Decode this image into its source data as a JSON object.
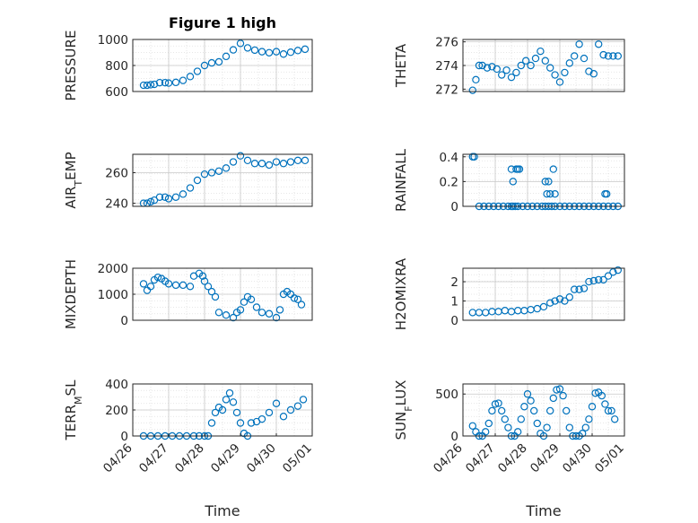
{
  "colors": {
    "marker": "#0072bd",
    "axis": "#262626",
    "grid": "#dfdfdf"
  },
  "chart_data": [
    {
      "type": "scatter",
      "title": "Figure 1 high",
      "ylabel": "PRESSURE",
      "ylabel_parts": [
        [
          "PRESSURE",
          ""
        ]
      ],
      "xlim": [
        0,
        5
      ],
      "ylim": [
        600,
        1000
      ],
      "yticks": [
        600,
        800,
        1000
      ],
      "xticks": [],
      "x": [
        0.3,
        0.4,
        0.5,
        0.6,
        0.75,
        0.9,
        1.0,
        1.2,
        1.4,
        1.6,
        1.8,
        2.0,
        2.2,
        2.4,
        2.6,
        2.8,
        3.0,
        3.2,
        3.4,
        3.6,
        3.8,
        4.0,
        4.2,
        4.4,
        4.6,
        4.8
      ],
      "values": [
        648,
        648,
        652,
        655,
        668,
        668,
        665,
        670,
        685,
        715,
        755,
        800,
        820,
        828,
        870,
        920,
        970,
        935,
        918,
        906,
        898,
        906,
        888,
        902,
        915,
        925
      ]
    },
    {
      "type": "scatter",
      "title": "",
      "ylabel": "THETA",
      "ylabel_parts": [
        [
          "THETA",
          ""
        ]
      ],
      "xlim": [
        0,
        5
      ],
      "ylim": [
        271.8,
        276.2
      ],
      "yticks": [
        272,
        274,
        276
      ],
      "xticks": [],
      "x": [
        0.3,
        0.4,
        0.5,
        0.6,
        0.75,
        0.9,
        1.05,
        1.2,
        1.35,
        1.5,
        1.65,
        1.8,
        1.95,
        2.1,
        2.25,
        2.4,
        2.55,
        2.7,
        2.85,
        3.0,
        3.15,
        3.3,
        3.45,
        3.6,
        3.75,
        3.9,
        4.05,
        4.2,
        4.35,
        4.5,
        4.65,
        4.8
      ],
      "values": [
        271.9,
        272.8,
        274.0,
        274.0,
        273.8,
        273.9,
        273.7,
        273.2,
        273.6,
        273.0,
        273.4,
        274.0,
        274.4,
        274.0,
        274.6,
        275.2,
        274.4,
        273.8,
        273.2,
        272.6,
        273.4,
        274.2,
        274.8,
        275.8,
        274.6,
        273.5,
        273.3,
        275.8,
        274.9,
        274.8,
        274.8,
        274.8
      ]
    },
    {
      "type": "scatter",
      "title": "",
      "ylabel": "AIR_TEMP",
      "ylabel_parts": [
        [
          "AIR",
          ""
        ],
        [
          "T",
          "sub"
        ],
        [
          "EMP",
          ""
        ]
      ],
      "xlim": [
        0,
        5
      ],
      "ylim": [
        238,
        272
      ],
      "yticks": [
        240,
        260
      ],
      "xticks": [],
      "x": [
        0.3,
        0.4,
        0.5,
        0.6,
        0.75,
        0.9,
        1.0,
        1.2,
        1.4,
        1.6,
        1.8,
        2.0,
        2.2,
        2.4,
        2.6,
        2.8,
        3.0,
        3.2,
        3.4,
        3.6,
        3.8,
        4.0,
        4.2,
        4.4,
        4.6,
        4.8
      ],
      "values": [
        240,
        240,
        241,
        242,
        244,
        244,
        243,
        244,
        246,
        250,
        255,
        259,
        260,
        261,
        263,
        267,
        271,
        268,
        266,
        266,
        265,
        267,
        266,
        267,
        268,
        268
      ]
    },
    {
      "type": "scatter",
      "title": "",
      "ylabel": "RAINFALL",
      "ylabel_parts": [
        [
          "RAINFALL",
          ""
        ]
      ],
      "xlim": [
        0,
        5
      ],
      "ylim": [
        0,
        0.42
      ],
      "yticks": [
        0,
        0.2,
        0.4
      ],
      "xticks": [],
      "x": [
        0.3,
        0.35,
        0.5,
        0.65,
        0.8,
        0.95,
        1.1,
        1.25,
        1.4,
        1.5,
        1.55,
        1.62,
        1.7,
        1.85,
        2.0,
        2.15,
        2.3,
        2.45,
        2.55,
        2.65,
        2.75,
        2.85,
        3.0,
        3.15,
        3.3,
        3.45,
        3.6,
        3.75,
        3.9,
        4.05,
        4.2,
        4.35,
        4.5,
        4.65,
        4.8,
        1.5,
        1.55,
        1.65,
        1.7,
        1.75,
        2.55,
        2.6,
        2.65,
        2.7,
        2.8,
        2.85,
        4.4,
        4.45
      ],
      "values": [
        0.4,
        0.4,
        0,
        0,
        0,
        0,
        0,
        0,
        0,
        0,
        0,
        0,
        0,
        0,
        0,
        0,
        0,
        0,
        0,
        0,
        0,
        0,
        0,
        0,
        0,
        0,
        0,
        0,
        0,
        0,
        0,
        0,
        0,
        0,
        0,
        0.3,
        0.2,
        0.3,
        0.3,
        0.3,
        0.2,
        0.1,
        0.2,
        0.1,
        0.3,
        0.1,
        0.1,
        0.1
      ]
    },
    {
      "type": "scatter",
      "title": "",
      "ylabel": "MIXDEPTH",
      "ylabel_parts": [
        [
          "MIXDEPTH",
          ""
        ]
      ],
      "xlim": [
        0,
        5
      ],
      "ylim": [
        0,
        2000
      ],
      "yticks": [
        0,
        1000,
        2000
      ],
      "xticks": [],
      "x": [
        0.3,
        0.4,
        0.5,
        0.6,
        0.7,
        0.8,
        0.9,
        1.0,
        1.2,
        1.4,
        1.6,
        1.7,
        1.85,
        1.95,
        2.0,
        2.1,
        2.2,
        2.3,
        2.4,
        2.6,
        2.8,
        2.9,
        3.0,
        3.1,
        3.2,
        3.3,
        3.45,
        3.6,
        3.8,
        4.0,
        4.1,
        4.2,
        4.3,
        4.4,
        4.5,
        4.6,
        4.7
      ],
      "values": [
        1400,
        1150,
        1300,
        1550,
        1650,
        1600,
        1500,
        1400,
        1350,
        1350,
        1300,
        1700,
        1800,
        1700,
        1500,
        1300,
        1100,
        900,
        300,
        200,
        100,
        300,
        400,
        700,
        900,
        800,
        500,
        300,
        250,
        100,
        400,
        1000,
        1100,
        1000,
        850,
        800,
        600
      ]
    },
    {
      "type": "scatter",
      "title": "",
      "ylabel": "H2OMIXRA",
      "ylabel_parts": [
        [
          "H2OMIXRA",
          ""
        ]
      ],
      "xlim": [
        0,
        5
      ],
      "ylim": [
        0,
        2.7
      ],
      "yticks": [
        0,
        1,
        2
      ],
      "xticks": [],
      "x": [
        0.3,
        0.5,
        0.7,
        0.9,
        1.1,
        1.3,
        1.5,
        1.7,
        1.9,
        2.1,
        2.3,
        2.5,
        2.7,
        2.85,
        3.0,
        3.15,
        3.3,
        3.45,
        3.6,
        3.75,
        3.9,
        4.05,
        4.2,
        4.35,
        4.5,
        4.65,
        4.8
      ],
      "values": [
        0.4,
        0.4,
        0.4,
        0.45,
        0.45,
        0.5,
        0.45,
        0.5,
        0.5,
        0.55,
        0.6,
        0.7,
        0.9,
        1.0,
        1.1,
        1.0,
        1.2,
        1.6,
        1.6,
        1.65,
        2.0,
        2.05,
        2.1,
        2.1,
        2.3,
        2.5,
        2.6
      ]
    },
    {
      "type": "scatter",
      "title": "",
      "ylabel": "TERR_MSL",
      "ylabel_parts": [
        [
          "TERR",
          ""
        ],
        [
          "M",
          "sub"
        ],
        [
          "SL",
          ""
        ]
      ],
      "xlim": [
        0,
        5
      ],
      "ylim": [
        0,
        400
      ],
      "yticks": [
        0,
        200,
        400
      ],
      "xticks": [
        "04/26",
        "04/27",
        "04/28",
        "04/29",
        "04/30",
        "05/01"
      ],
      "xlabel": "Time",
      "x": [
        0.3,
        0.5,
        0.7,
        0.9,
        1.1,
        1.3,
        1.5,
        1.7,
        1.85,
        2.0,
        2.1,
        2.2,
        2.3,
        2.4,
        2.5,
        2.6,
        2.7,
        2.8,
        2.9,
        3.0,
        3.1,
        3.2,
        3.3,
        3.45,
        3.6,
        3.8,
        4.0,
        4.2,
        4.4,
        4.6,
        4.75
      ],
      "values": [
        0,
        0,
        0,
        0,
        0,
        0,
        0,
        0,
        0,
        0,
        0,
        100,
        180,
        220,
        200,
        280,
        330,
        260,
        180,
        100,
        20,
        0,
        100,
        110,
        130,
        180,
        250,
        150,
        200,
        230,
        280
      ]
    },
    {
      "type": "scatter",
      "title": "",
      "ylabel": "SUN_FLUX",
      "ylabel_parts": [
        [
          "SUN",
          ""
        ],
        [
          "F",
          "sub"
        ],
        [
          "LUX",
          ""
        ]
      ],
      "xlim": [
        0,
        5
      ],
      "ylim": [
        0,
        620
      ],
      "yticks": [
        0,
        500
      ],
      "xticks": [
        "04/26",
        "04/27",
        "04/28",
        "04/29",
        "04/30",
        "05/01"
      ],
      "xlabel": "Time",
      "x": [
        0.3,
        0.4,
        0.5,
        0.6,
        0.7,
        0.8,
        0.9,
        1.0,
        1.1,
        1.2,
        1.3,
        1.4,
        1.5,
        1.6,
        1.7,
        1.8,
        1.9,
        2.0,
        2.1,
        2.2,
        2.3,
        2.4,
        2.5,
        2.6,
        2.7,
        2.8,
        2.9,
        3.0,
        3.1,
        3.2,
        3.3,
        3.4,
        3.5,
        3.6,
        3.7,
        3.8,
        3.9,
        4.0,
        4.1,
        4.2,
        4.3,
        4.4,
        4.5,
        4.6,
        4.7
      ],
      "values": [
        120,
        50,
        0,
        0,
        50,
        150,
        300,
        380,
        390,
        300,
        200,
        100,
        0,
        0,
        50,
        200,
        350,
        500,
        420,
        300,
        150,
        30,
        0,
        100,
        300,
        450,
        550,
        560,
        480,
        300,
        100,
        0,
        0,
        0,
        30,
        100,
        200,
        350,
        510,
        520,
        480,
        380,
        300,
        300,
        200
      ]
    }
  ]
}
